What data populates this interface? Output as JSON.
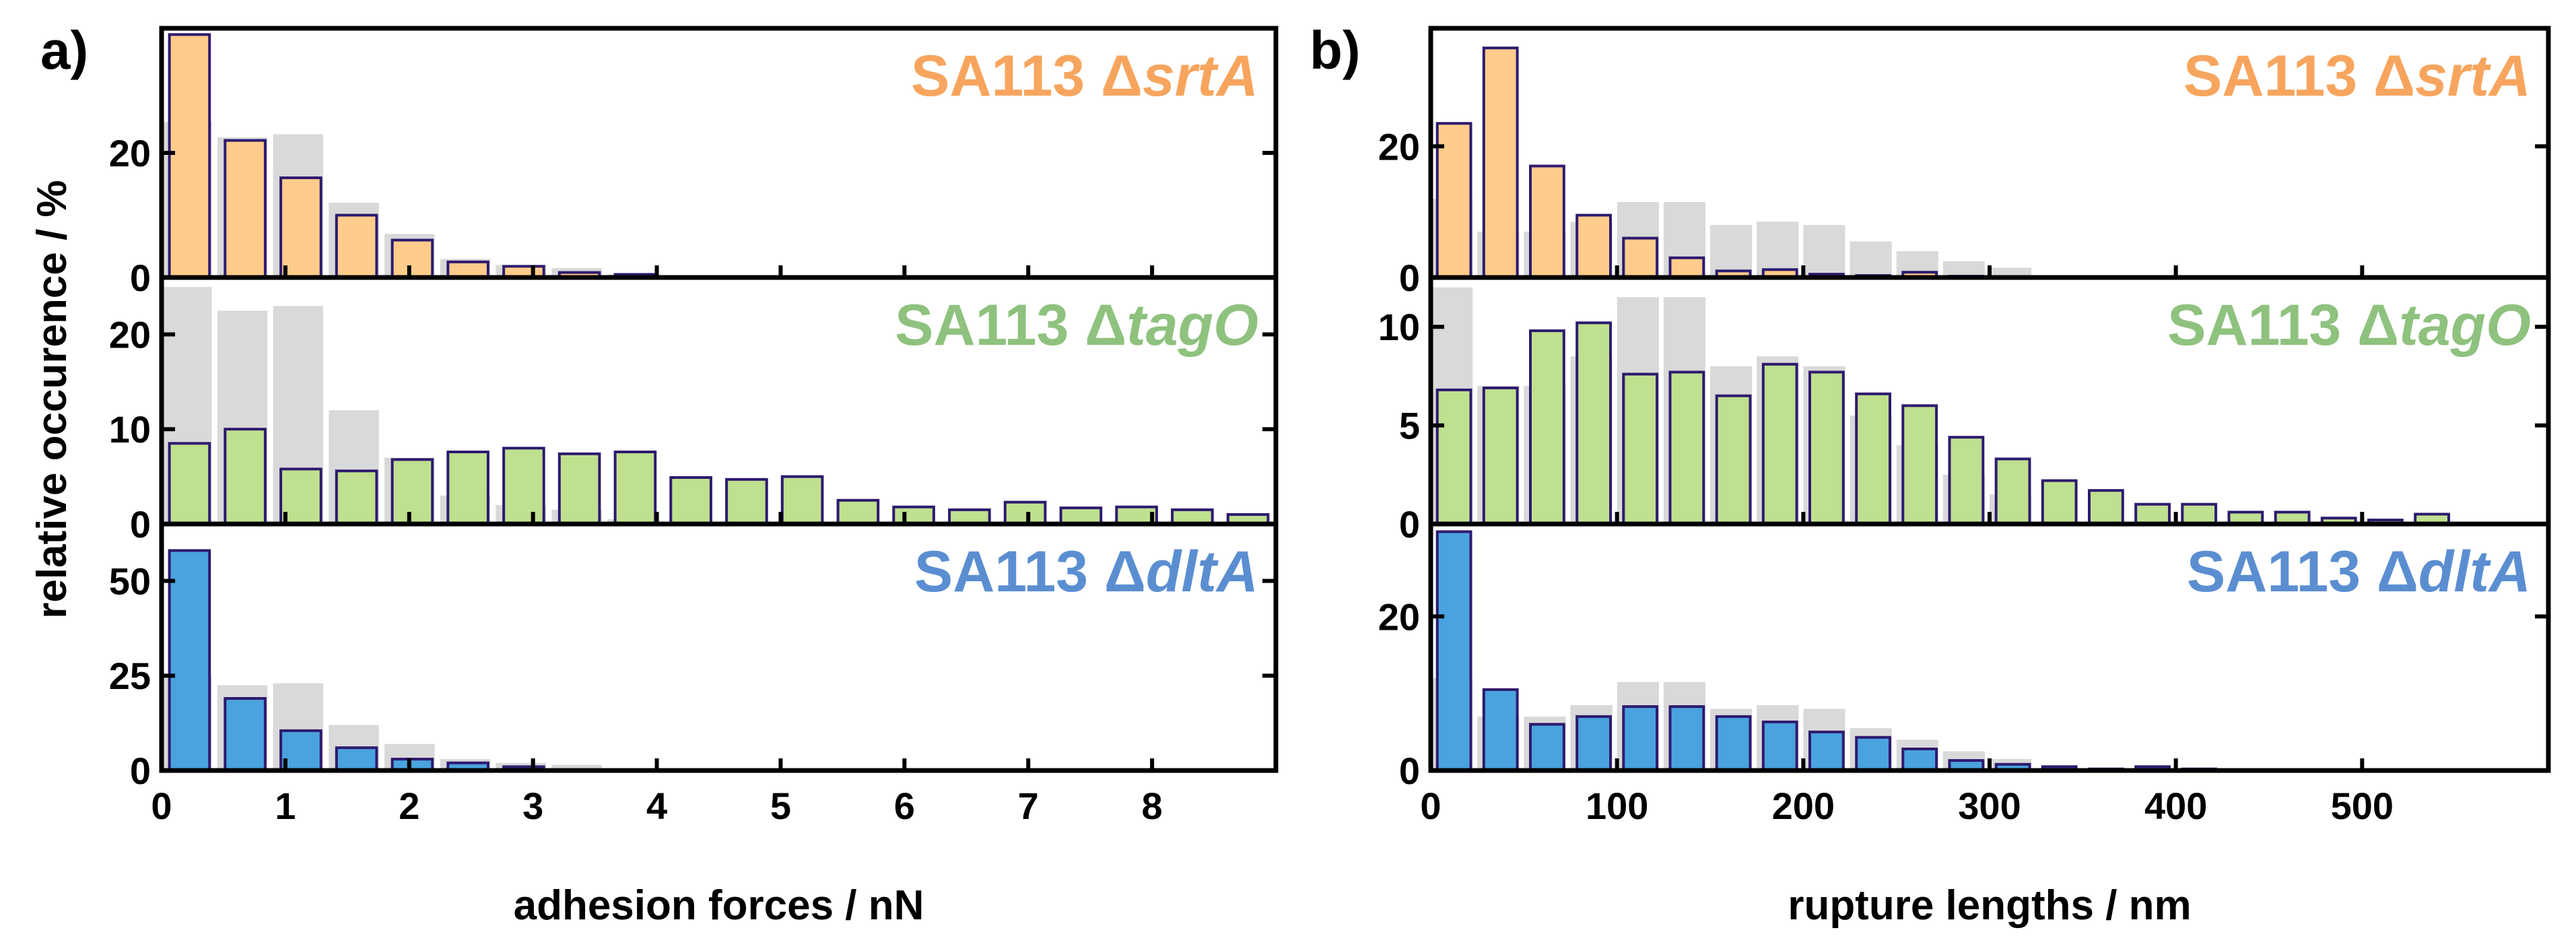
{
  "chart_data": [
    {
      "type": "bar",
      "panel_label": "a)",
      "xlabel": "adhesion forces / nN",
      "ylabel": "relative occurence / %",
      "xlim": [
        0,
        9
      ],
      "x_ticks": [
        0,
        1,
        2,
        3,
        4,
        5,
        6,
        7,
        8
      ],
      "bin_width": 0.45,
      "reference_color": "#d9d9d9",
      "reference": {
        "name": "reference distribution (gray)",
        "x": [
          0.0,
          0.45,
          0.9,
          1.35,
          1.8,
          2.25,
          2.7,
          3.15,
          3.6
        ],
        "values": [
          25,
          22.5,
          23,
          12,
          7,
          3,
          2,
          1.5,
          0.5
        ]
      },
      "subplots": [
        {
          "label_prefix": "SA113 Δ",
          "label_gene": "srtA",
          "color": "#f7a55e",
          "bar_color": "#ffcc8c",
          "ylim": [
            0,
            40
          ],
          "y_ticks": [
            0,
            20
          ],
          "x": [
            0.225,
            0.675,
            1.125,
            1.575,
            2.025,
            2.475,
            2.925,
            3.375,
            3.825
          ],
          "values": [
            39,
            22,
            16,
            10,
            6,
            2.5,
            1.8,
            0.8,
            0.5
          ]
        },
        {
          "label_prefix": "SA113 Δ",
          "label_gene": "tagO",
          "color": "#8ec27e",
          "bar_color": "#bfe08f",
          "ylim": [
            0,
            26
          ],
          "y_ticks": [
            0,
            10,
            20
          ],
          "x": [
            0.225,
            0.675,
            1.125,
            1.575,
            2.025,
            2.475,
            2.925,
            3.375,
            3.825,
            4.275,
            4.725,
            5.175,
            5.625,
            6.075,
            6.525,
            6.975,
            7.425,
            7.875,
            8.325,
            8.775
          ],
          "values": [
            8.5,
            10,
            5.8,
            5.6,
            6.8,
            7.6,
            8,
            7.4,
            7.6,
            4.9,
            4.7,
            5,
            2.5,
            1.8,
            1.5,
            2.3,
            1.7,
            1.8,
            1.5,
            1.0
          ]
        },
        {
          "label_prefix": "SA113 Δ",
          "label_gene": "dltA",
          "color": "#5b8ed1",
          "bar_color": "#4aa3de",
          "ylim": [
            0,
            65
          ],
          "y_ticks": [
            0,
            25,
            50
          ],
          "x": [
            0.225,
            0.675,
            1.125,
            1.575,
            2.025,
            2.475,
            2.925
          ],
          "values": [
            58,
            19,
            10.5,
            6,
            3,
            2,
            1
          ]
        }
      ]
    },
    {
      "type": "bar",
      "panel_label": "b)",
      "xlabel": "rupture lengths / nm",
      "xlim": [
        0,
        600
      ],
      "x_ticks": [
        0,
        100,
        200,
        300,
        400,
        500
      ],
      "bin_width": 25,
      "reference_color": "#d9d9d9",
      "reference": {
        "name": "reference distribution (gray)",
        "x": [
          0,
          25,
          50,
          75,
          100,
          125,
          150,
          175,
          200,
          225,
          250,
          275,
          300
        ],
        "values": [
          12,
          7,
          7,
          8.5,
          11.5,
          11.5,
          8,
          8.5,
          8,
          5.5,
          4,
          2.5,
          1.5
        ]
      },
      "subplots": [
        {
          "label_prefix": "SA113 Δ",
          "label_gene": "srtA",
          "color": "#f7a55e",
          "bar_color": "#ffcc8c",
          "ylim": [
            0,
            38
          ],
          "y_ticks": [
            0,
            20
          ],
          "x": [
            12.5,
            37.5,
            62.5,
            87.5,
            112.5,
            137.5,
            162.5,
            187.5,
            212.5,
            237.5,
            262.5,
            287.5
          ],
          "values": [
            23.5,
            35,
            17,
            9.5,
            6,
            3,
            1,
            1.2,
            0.5,
            0.3,
            0.8,
            0.2
          ]
        },
        {
          "label_prefix": "SA113 Δ",
          "label_gene": "tagO",
          "color": "#8ec27e",
          "bar_color": "#bfe08f",
          "ylim": [
            0,
            12.5
          ],
          "y_ticks": [
            0,
            5,
            10
          ],
          "x": [
            12.5,
            37.5,
            62.5,
            87.5,
            112.5,
            137.5,
            162.5,
            187.5,
            212.5,
            237.5,
            262.5,
            287.5,
            312.5,
            337.5,
            362.5,
            387.5,
            412.5,
            437.5,
            462.5,
            487.5,
            512.5,
            537.5
          ],
          "values": [
            6.8,
            6.9,
            9.8,
            10.2,
            7.6,
            7.7,
            6.5,
            8.1,
            7.7,
            6.6,
            6.0,
            4.4,
            3.3,
            2.2,
            1.7,
            1.0,
            1.0,
            0.6,
            0.6,
            0.3,
            0.2,
            0.5
          ]
        },
        {
          "label_prefix": "SA113 Δ",
          "label_gene": "dltA",
          "color": "#5b8ed1",
          "bar_color": "#4aa3de",
          "ylim": [
            0,
            32
          ],
          "y_ticks": [
            0,
            20
          ],
          "x": [
            12.5,
            37.5,
            62.5,
            87.5,
            112.5,
            137.5,
            162.5,
            187.5,
            212.5,
            237.5,
            262.5,
            287.5,
            312.5,
            337.5,
            362.5,
            387.5,
            412.5
          ],
          "values": [
            31,
            10.5,
            6,
            7,
            8.3,
            8.3,
            7,
            6.3,
            5,
            4.3,
            2.8,
            1.3,
            0.8,
            0.5,
            0.2,
            0.5,
            0.2
          ]
        }
      ]
    }
  ]
}
